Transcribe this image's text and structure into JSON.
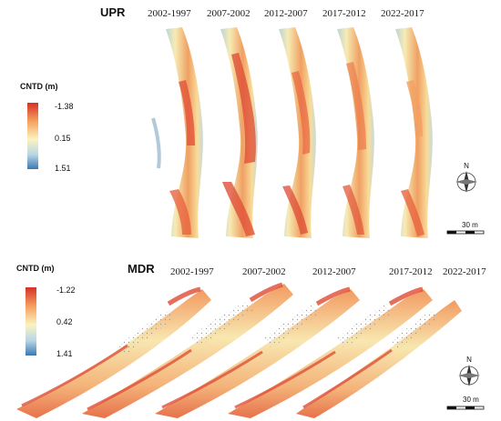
{
  "colors": {
    "high": "#d73027",
    "upper_mid": "#f4a15f",
    "mid": "#fbf3c0",
    "lower_mid": "#b9d7e6",
    "low": "#3a78b4",
    "background": "#ffffff"
  },
  "upr": {
    "label": "UPR",
    "periods": [
      "2002-1997",
      "2007-2002",
      "2012-2007",
      "2017-2012",
      "2022-2017"
    ],
    "legend": {
      "title": "CNTD (m)",
      "ticks": [
        "-1.38",
        "0.15",
        "1.51"
      ]
    },
    "scale_label": "30 m",
    "north_label": "N"
  },
  "mdr": {
    "label": "MDR",
    "periods": [
      "2002-1997",
      "2007-2002",
      "2012-2007",
      "2017-2012",
      "2022-2017"
    ],
    "legend": {
      "title": "CNTD (m)",
      "ticks": [
        "-1.22",
        "0.42",
        "1.41"
      ]
    },
    "scale_label": "30 m",
    "north_label": "N"
  }
}
